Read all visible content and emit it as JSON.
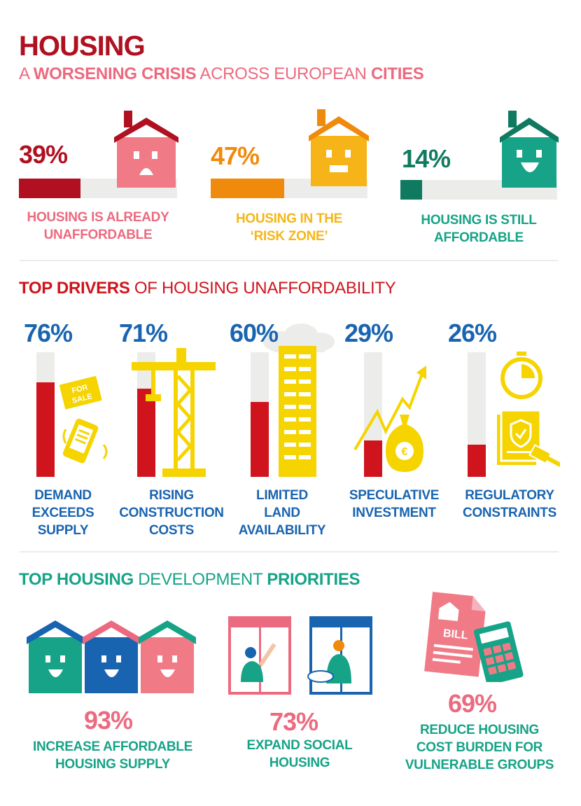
{
  "header": {
    "title": "HOUSING",
    "subtitle_a": "A ",
    "subtitle_b": "WORSENING CRISIS",
    "subtitle_c": " ACROSS EUROPEAN ",
    "subtitle_d": "CITIES"
  },
  "affordability": [
    {
      "percent": "39%",
      "value": 0.39,
      "line1": "HOUSING IS ALREADY",
      "line2": "UNAFFORDABLE",
      "color": "#b01020",
      "label_color": "#ec6a7f",
      "house_color": "#f07b86",
      "roof_color": "#b01020",
      "icon": "unhappy-house-icon"
    },
    {
      "percent": "47%",
      "value": 0.47,
      "line1": "HOUSING IN THE",
      "line2": "‘RISK ZONE’",
      "color": "#f08a0c",
      "label_color": "#f5b617",
      "house_color": "#f7b418",
      "roof_color": "#f08a0c",
      "icon": "neutral-house-icon"
    },
    {
      "percent": "14%",
      "value": 0.14,
      "line1": "HOUSING IS STILL",
      "line2": "AFFORDABLE",
      "color": "#0f7a5f",
      "label_color": "#16a387",
      "house_color": "#16a387",
      "roof_color": "#0f7a5f",
      "icon": "happy-house-icon"
    }
  ],
  "drivers": {
    "title_bold": "TOP DRIVERS",
    "title_rest": " OF HOUSING UNAFFORDABILITY",
    "items": [
      {
        "percent": "76%",
        "value": 0.76,
        "line1": "DEMAND",
        "line2": "EXCEEDS",
        "line3": "SUPPLY",
        "icon": "for-sale-phone-icon"
      },
      {
        "percent": "71%",
        "value": 0.71,
        "line1": "RISING",
        "line2": "CONSTRUCTION",
        "line3": "COSTS",
        "icon": "crane-icon"
      },
      {
        "percent": "60%",
        "value": 0.6,
        "line1": "LIMITED",
        "line2": "LAND",
        "line3": "AVAILABILITY",
        "icon": "skyscraper-icon"
      },
      {
        "percent": "29%",
        "value": 0.29,
        "line1": "SPECULATIVE",
        "line2": "INVESTMENT",
        "line3": "",
        "icon": "money-bag-trend-icon"
      },
      {
        "percent": "26%",
        "value": 0.26,
        "line1": "REGULATORY",
        "line2": "CONSTRAINTS",
        "line3": "",
        "icon": "stopwatch-gavel-icon"
      }
    ]
  },
  "priorities": {
    "title_a": "TOP HOUSING",
    "title_b": " DEVELOPMENT ",
    "title_c": "PRIORITIES",
    "items": [
      {
        "percent": "93%",
        "line1": "INCREASE AFFORDABLE",
        "line2": "HOUSING SUPPLY",
        "line3": "",
        "icon": "happy-houses-icon"
      },
      {
        "percent": "73%",
        "line1": "EXPAND SOCIAL",
        "line2": "HOUSING",
        "line3": "",
        "icon": "neighbours-windows-icon"
      },
      {
        "percent": "69%",
        "line1": "REDUCE HOUSING",
        "line2": "COST BURDEN FOR",
        "line3": "VULNERABLE GROUPS",
        "icon": "bill-calculator-icon"
      }
    ],
    "bill_label": "BILL"
  },
  "colors": {
    "dark_red": "#b01020",
    "pink": "#ec6a7f",
    "bar_red": "#d0141d",
    "blue": "#1964b0",
    "teal": "#16a387",
    "yellow": "#f5d400",
    "grey": "#ececea"
  }
}
